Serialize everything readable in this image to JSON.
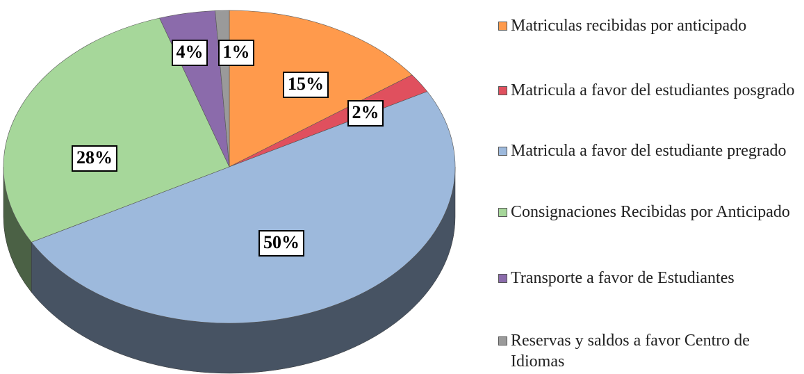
{
  "chart_data": {
    "type": "pie",
    "categories": [
      "Matriculas recibidas por anticipado",
      "Matricula a favor del estudiantes posgrado",
      "Matricula a favor del estudiante pregrado",
      "Consignaciones Recibidas por Anticipado",
      "Transporte a favor de Estudiantes",
      "Reservas y saldos a favor Centro de Idiomas"
    ],
    "values": [
      15,
      2,
      50,
      28,
      4,
      1
    ],
    "value_labels": [
      "15%",
      "2%",
      "50%",
      "28%",
      "4%",
      "1%"
    ],
    "colors": [
      "#ff9a4c",
      "#e0505e",
      "#9db9dc",
      "#a6d79a",
      "#8b6bab",
      "#9a9a9a"
    ]
  }
}
